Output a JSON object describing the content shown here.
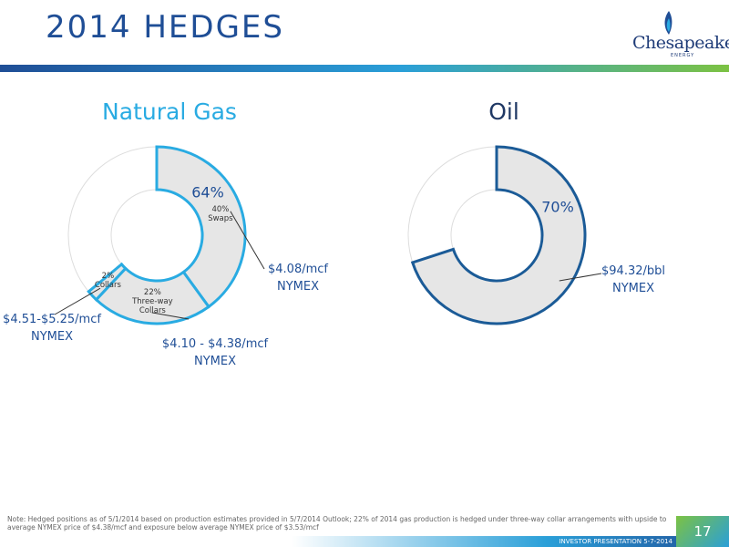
{
  "slide": {
    "title": "2014 HEDGES",
    "logo": "Chesapeake",
    "logo_sub": "ENERGY",
    "note": "Note: Hedged positions as of 5/1/2014 based on production estimates provided in 5/7/2014 Outlook; 22% of 2014 gas production is hedged under three-way collar arrangements with upside to average NYMEX price of $4.38/mcf and exposure below average NYMEX price of $3.53/mcf",
    "footer": "INVESTOR PRESENTATION 5-7-2014",
    "page_number": "17"
  },
  "chart_data": [
    {
      "type": "donut",
      "title": "Natural Gas",
      "color": "#29abe2",
      "segment_fill": "#e6e6e6",
      "total": 64,
      "total_label": "64%",
      "categories": [
        "Swaps",
        "Three-way Collars",
        "Collars"
      ],
      "values": [
        40,
        22,
        2
      ],
      "value_labels": [
        "40%",
        "22%",
        "2%"
      ],
      "annotations": [
        [
          "$4.08/mcf",
          "NYMEX"
        ],
        [
          "$4.10 - $4.38/mcf",
          "NYMEX"
        ],
        [
          "$4.51-$5.25/mcf",
          "NYMEX"
        ]
      ]
    },
    {
      "type": "donut",
      "title": "Oil",
      "color": "#1b5b97",
      "segment_fill": "#e6e6e6",
      "total": 70,
      "total_label": "70%",
      "values": [
        70
      ],
      "annotations": [
        [
          "$94.32/bbl",
          "NYMEX"
        ]
      ]
    }
  ]
}
